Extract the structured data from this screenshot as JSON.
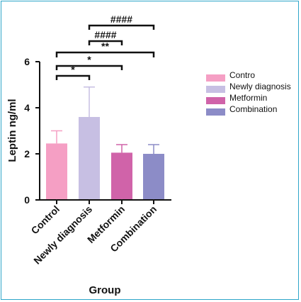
{
  "chart_data": {
    "type": "bar",
    "categories": [
      "Control",
      "Newly diagnosis",
      "Metformin",
      "Combination"
    ],
    "values": [
      2.45,
      3.6,
      2.05,
      2.0
    ],
    "errors": [
      0.55,
      1.3,
      0.35,
      0.4
    ],
    "colors": [
      "#f59fc4",
      "#c7bfe3",
      "#d063a9",
      "#8c8cc7"
    ],
    "xlabel": "Group",
    "ylabel": "Leptin ng/ml",
    "ylim": [
      0,
      6
    ],
    "yticks": [
      "0",
      "2",
      "4",
      "6"
    ],
    "grid": false,
    "legend": {
      "placement": "right",
      "entries": [
        "Contro",
        "Newly diagnosis",
        "Metformin",
        "Combination"
      ]
    },
    "significance": [
      {
        "from": 0,
        "to": 1,
        "label": "*"
      },
      {
        "from": 0,
        "to": 2,
        "label": "*"
      },
      {
        "from": 0,
        "to": 3,
        "label": "**"
      },
      {
        "from": 1,
        "to": 2,
        "label": "####"
      },
      {
        "from": 1,
        "to": 3,
        "label": "####"
      }
    ]
  }
}
